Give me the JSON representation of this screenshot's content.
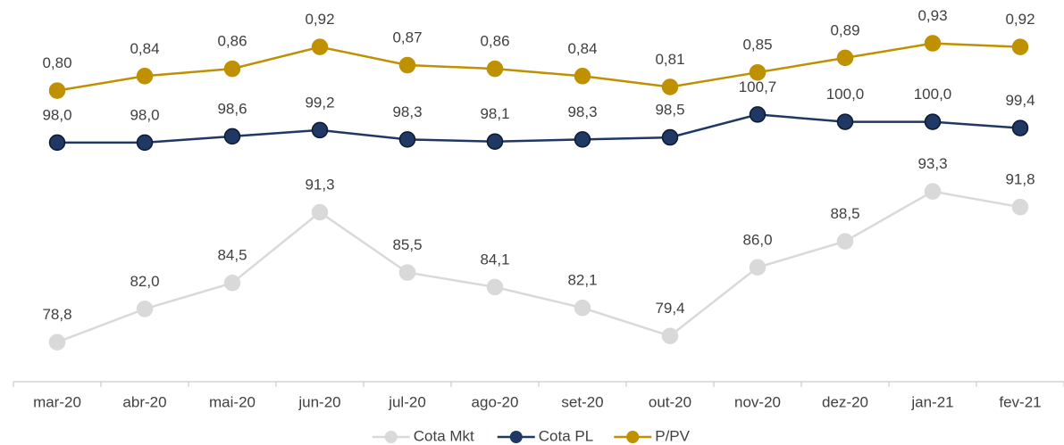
{
  "chart_data": {
    "type": "line",
    "categories": [
      "mar-20",
      "abr-20",
      "mai-20",
      "jun-20",
      "jul-20",
      "ago-20",
      "set-20",
      "out-20",
      "nov-20",
      "dez-20",
      "jan-21",
      "fev-21"
    ],
    "ylim": [
      75,
      110
    ],
    "y2lim": [
      0,
      1
    ],
    "grid": false,
    "legend": "bottom",
    "series": [
      {
        "name": "Cota Mkt",
        "color": "#d9d9d9",
        "values": [
          78.8,
          82.0,
          84.5,
          91.3,
          85.5,
          84.1,
          82.1,
          79.4,
          86.0,
          88.5,
          93.3,
          91.8
        ],
        "value_labels": [
          "78,8",
          "82,0",
          "84,5",
          "91,3",
          "85,5",
          "84,1",
          "82,1",
          "79,4",
          "86,0",
          "88,5",
          "93,3",
          "91,8"
        ]
      },
      {
        "name": "Cota PL",
        "color": "#1f3864",
        "values": [
          98.0,
          98.0,
          98.6,
          99.2,
          98.3,
          98.1,
          98.3,
          98.5,
          100.7,
          100.0,
          100.0,
          99.4
        ],
        "value_labels": [
          "98,0",
          "98,0",
          "98,6",
          "99,2",
          "98,3",
          "98,1",
          "98,3",
          "98,5",
          "100,7",
          "100,0",
          "100,0",
          "99,4"
        ]
      },
      {
        "name": "P/PV",
        "color": "#bf9000",
        "axis": "y2",
        "values": [
          0.8,
          0.84,
          0.86,
          0.92,
          0.87,
          0.86,
          0.84,
          0.81,
          0.85,
          0.89,
          0.93,
          0.92
        ],
        "value_labels": [
          "0,80",
          "0,84",
          "0,86",
          "0,92",
          "0,87",
          "0,86",
          "0,84",
          "0,81",
          "0,85",
          "0,89",
          "0,93",
          "0,92"
        ]
      }
    ]
  }
}
